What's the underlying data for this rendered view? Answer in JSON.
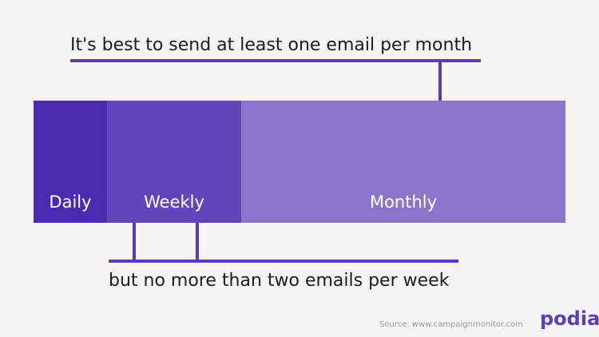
{
  "top_note": "It's best to send at least one email per month",
  "segments": [
    {
      "label": "Daily"
    },
    {
      "label": "Weekly"
    },
    {
      "label": "Monthly"
    }
  ],
  "bottom_note": "but no more than two emails per week",
  "source": "Source: www.campaignmonitor.com",
  "logo": "podia"
}
